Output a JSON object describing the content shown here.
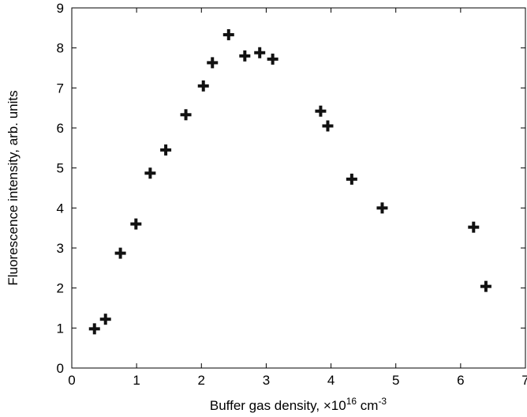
{
  "chart_data": {
    "type": "scatter",
    "title": "",
    "xlabel": "Buffer gas density, ×10",
    "xlabel_sup": "16",
    "xlabel_unit": " cm",
    "xlabel_unit_sup": "-3",
    "ylabel": "Fluorescence intensity, arb. units",
    "xlim": [
      0,
      7
    ],
    "ylim": [
      0,
      9
    ],
    "xticks": [
      "0",
      "1",
      "2",
      "3",
      "4",
      "5",
      "6",
      "7"
    ],
    "yticks": [
      "0",
      "1",
      "2",
      "3",
      "4",
      "5",
      "6",
      "7",
      "8",
      "9"
    ],
    "grid": false,
    "marker": "plus",
    "marker_color": "#111111",
    "points": [
      {
        "x": 0.35,
        "y": 0.98
      },
      {
        "x": 0.52,
        "y": 1.22
      },
      {
        "x": 0.75,
        "y": 2.87
      },
      {
        "x": 0.99,
        "y": 3.6
      },
      {
        "x": 1.21,
        "y": 4.87
      },
      {
        "x": 1.45,
        "y": 5.45
      },
      {
        "x": 1.76,
        "y": 6.33
      },
      {
        "x": 2.03,
        "y": 7.05
      },
      {
        "x": 2.17,
        "y": 7.63
      },
      {
        "x": 2.42,
        "y": 8.33
      },
      {
        "x": 2.67,
        "y": 7.8
      },
      {
        "x": 2.9,
        "y": 7.88
      },
      {
        "x": 3.1,
        "y": 7.72
      },
      {
        "x": 3.84,
        "y": 6.42
      },
      {
        "x": 3.95,
        "y": 6.05
      },
      {
        "x": 4.32,
        "y": 4.72
      },
      {
        "x": 4.79,
        "y": 4.0
      },
      {
        "x": 6.2,
        "y": 3.52
      },
      {
        "x": 6.39,
        "y": 2.04
      }
    ]
  }
}
